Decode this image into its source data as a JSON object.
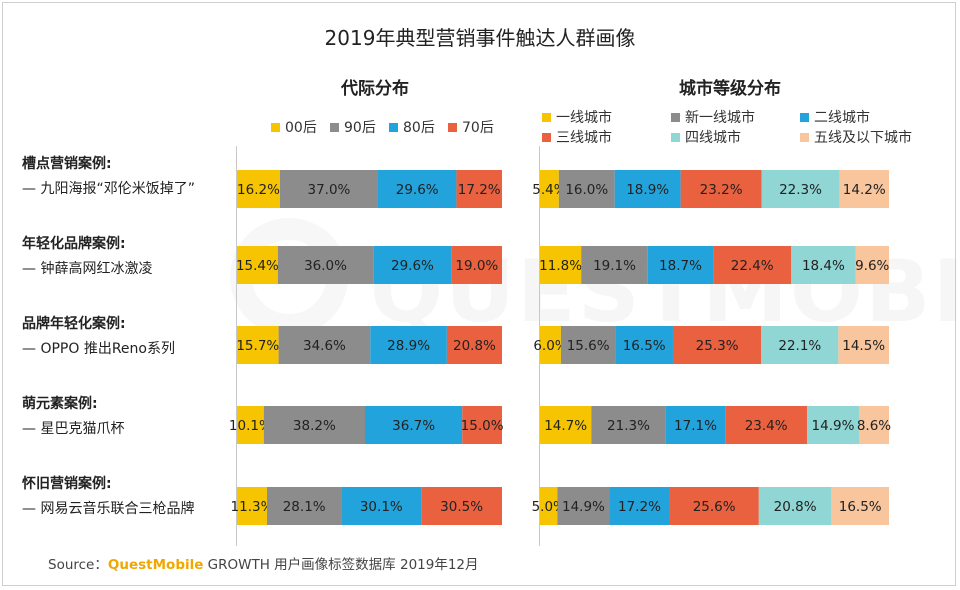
{
  "title": "2019年典型营销事件触达人群画像",
  "source": {
    "prefix": "Source：",
    "brand": "QuestMobile",
    "rest": " GROWTH 用户画像标签数据库 2019年12月"
  },
  "colors": {
    "c00": "#f6c400",
    "c90": "#8c8c8c",
    "c80": "#23a3dc",
    "c70": "#ea6140",
    "t1": "#f6c400",
    "tnew1": "#8c8c8c",
    "t2": "#23a3dc",
    "t3": "#ea6140",
    "t4": "#8fd6d5",
    "t5": "#f8c59c"
  },
  "cases": [
    {
      "title": "槽点营销案例:",
      "subtitle": "— 九阳海报“邓伦米饭掉了”"
    },
    {
      "title": "年轻化品牌案例:",
      "subtitle": "— 钟薛高网红冰激凌"
    },
    {
      "title": "品牌年轻化案例:",
      "subtitle": "— OPPO 推出Reno系列"
    },
    {
      "title": "萌元素案例:",
      "subtitle": "— 星巴克猫爪杯"
    },
    {
      "title": "怀旧营销案例:",
      "subtitle": "— 网易云音乐联合三枪品牌"
    }
  ],
  "chart_data": [
    {
      "type": "bar",
      "stacked": true,
      "orientation": "horizontal",
      "title": "代际分布",
      "categories": [
        "槽点营销案例",
        "年轻化品牌案例",
        "品牌年轻化案例",
        "萌元素案例",
        "怀旧营销案例"
      ],
      "series": [
        {
          "name": "00后",
          "color": "#f6c400",
          "values": [
            16.2,
            15.4,
            15.7,
            10.1,
            11.3
          ]
        },
        {
          "name": "90后",
          "color": "#8c8c8c",
          "values": [
            37.0,
            36.0,
            34.6,
            38.2,
            28.1
          ]
        },
        {
          "name": "80后",
          "color": "#23a3dc",
          "values": [
            29.6,
            29.6,
            28.9,
            36.7,
            30.1
          ]
        },
        {
          "name": "70后",
          "color": "#ea6140",
          "values": [
            17.2,
            19.0,
            20.8,
            15.0,
            30.5
          ]
        }
      ],
      "labels": [
        [
          "16.2%",
          "37.0%",
          "29.6%",
          "17.2%"
        ],
        [
          "15.4%",
          "36.0%",
          "29.6%",
          "19.0%"
        ],
        [
          "15.7%",
          "34.6%",
          "28.9%",
          "20.8%"
        ],
        [
          "10.1%",
          "38.2%",
          "36.7%",
          "15.0%"
        ],
        [
          "11.3%",
          "28.1%",
          "30.1%",
          "30.5%"
        ]
      ],
      "legend": "top"
    },
    {
      "type": "bar",
      "stacked": true,
      "orientation": "horizontal",
      "title": "城市等级分布",
      "categories": [
        "槽点营销案例",
        "年轻化品牌案例",
        "品牌年轻化案例",
        "萌元素案例",
        "怀旧营销案例"
      ],
      "series": [
        {
          "name": "一线城市",
          "color": "#f6c400",
          "values": [
            5.4,
            11.8,
            6.0,
            14.7,
            5.0
          ]
        },
        {
          "name": "新一线城市",
          "color": "#8c8c8c",
          "values": [
            16.0,
            19.1,
            15.6,
            21.3,
            14.9
          ]
        },
        {
          "name": "二线城市",
          "color": "#23a3dc",
          "values": [
            18.9,
            18.7,
            16.5,
            17.1,
            17.2
          ]
        },
        {
          "name": "三线城市",
          "color": "#ea6140",
          "values": [
            23.2,
            22.4,
            25.3,
            23.4,
            25.6
          ]
        },
        {
          "name": "四线城市",
          "color": "#8fd6d5",
          "values": [
            22.3,
            18.4,
            22.1,
            14.9,
            20.8
          ]
        },
        {
          "name": "五线及以下城市",
          "color": "#f8c59c",
          "values": [
            14.2,
            9.6,
            14.5,
            8.6,
            16.5
          ]
        }
      ],
      "labels": [
        [
          "5.4%",
          "16.0%",
          "18.9%",
          "23.2%",
          "22.3%",
          "14.2%"
        ],
        [
          "11.8%",
          "19.1%",
          "18.7%",
          "22.4%",
          "18.4%",
          "9.6%"
        ],
        [
          "6.0%",
          "15.6%",
          "16.5%",
          "25.3%",
          "22.1%",
          "14.5%"
        ],
        [
          "14.7%",
          "21.3%",
          "17.1%",
          "23.4%",
          "14.9%",
          "8.6%"
        ],
        [
          "5.0%",
          "14.9%",
          "17.2%",
          "25.6%",
          "20.8%",
          "16.5%"
        ]
      ],
      "legend": "top"
    }
  ]
}
